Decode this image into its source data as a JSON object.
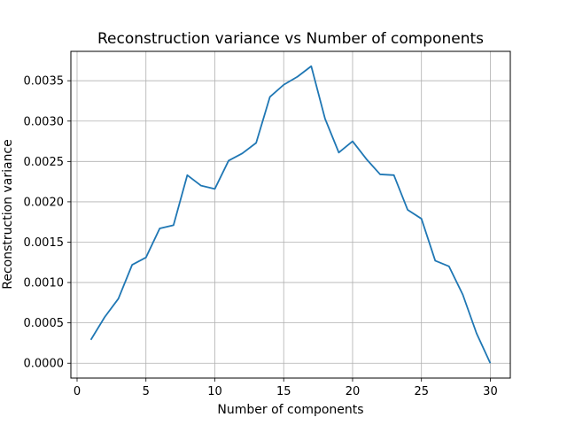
{
  "chart_data": {
    "type": "line",
    "title": "Reconstruction variance vs Number of components",
    "xlabel": "Number of components",
    "ylabel": "Reconstruction variance",
    "xlim": [
      -0.45,
      31.45
    ],
    "ylim": [
      -0.000184,
      0.003864
    ],
    "xticks": [
      0,
      5,
      10,
      15,
      20,
      25,
      30
    ],
    "xtick_labels": [
      "0",
      "5",
      "10",
      "15",
      "20",
      "25",
      "30"
    ],
    "yticks": [
      0.0,
      0.0005,
      0.001,
      0.0015,
      0.002,
      0.0025,
      0.003,
      0.0035
    ],
    "ytick_labels": [
      "0.0000",
      "0.0005",
      "0.0010",
      "0.0015",
      "0.0020",
      "0.0025",
      "0.0030",
      "0.0035"
    ],
    "grid": true,
    "series": [
      {
        "color": "#1f77b4",
        "x": [
          1,
          2,
          3,
          4,
          5,
          6,
          7,
          8,
          9,
          10,
          11,
          12,
          13,
          14,
          15,
          16,
          17,
          18,
          19,
          20,
          21,
          22,
          23,
          24,
          25,
          26,
          27,
          28,
          29,
          30
        ],
        "y": [
          0.00029,
          0.00057,
          0.0008,
          0.00122,
          0.00131,
          0.00167,
          0.00171,
          0.00233,
          0.0022,
          0.00216,
          0.00251,
          0.0026,
          0.00273,
          0.0033,
          0.00345,
          0.00355,
          0.00368,
          0.00303,
          0.00261,
          0.00275,
          0.00253,
          0.00234,
          0.00233,
          0.0019,
          0.00179,
          0.00127,
          0.0012,
          0.00085,
          0.00037,
          0.0
        ]
      }
    ]
  }
}
